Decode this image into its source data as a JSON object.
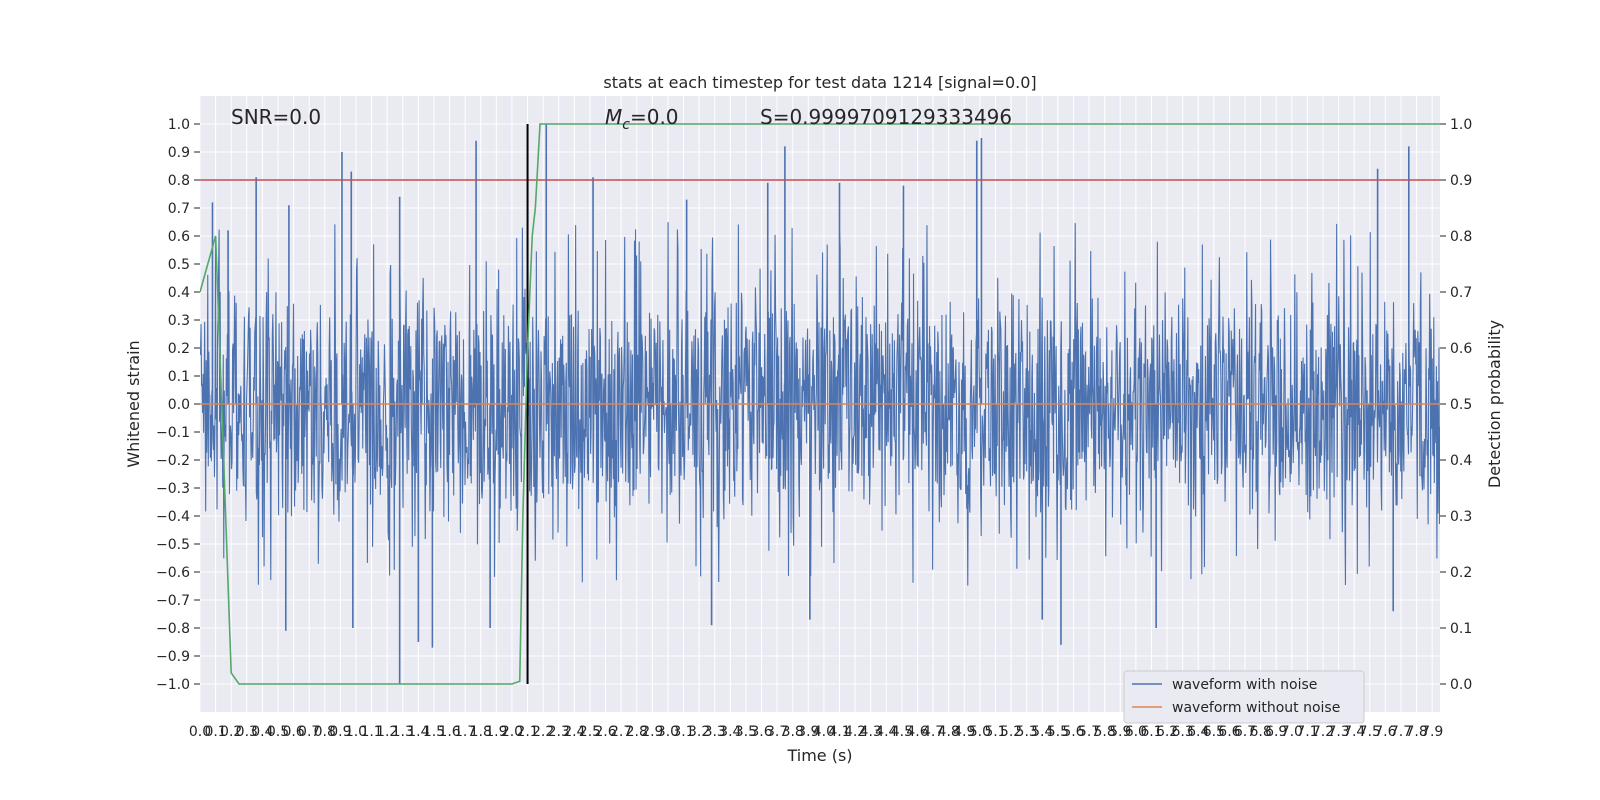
{
  "chart_data": {
    "type": "line",
    "title": "stats at each timestep for test data 1214 [signal=0.0]",
    "xlabel": "Time (s)",
    "ylabel": "Whitened strain",
    "ylabel_right": "Detection probability",
    "xlim": [
      0.0,
      7.95
    ],
    "ylim": [
      -1.1,
      1.1
    ],
    "ylim_right": [
      -0.05,
      1.05
    ],
    "x_ticks": [
      "0.0",
      "0.1",
      "0.2",
      "0.3",
      "0.4",
      "0.5",
      "0.6",
      "0.7",
      "0.8",
      "0.9",
      "1.0",
      "1.1",
      "1.2",
      "1.3",
      "1.4",
      "1.5",
      "1.6",
      "1.7",
      "1.8",
      "1.9",
      "2.0",
      "2.1",
      "2.2",
      "2.3",
      "2.4",
      "2.5",
      "2.6",
      "2.7",
      "2.8",
      "2.9",
      "3.0",
      "3.1",
      "3.2",
      "3.3",
      "3.4",
      "3.5",
      "3.6",
      "3.7",
      "3.8",
      "3.9",
      "4.0",
      "4.1",
      "4.2",
      "4.3",
      "4.4",
      "4.5",
      "4.6",
      "4.7",
      "4.8",
      "4.9",
      "5.0",
      "5.1",
      "5.2",
      "5.3",
      "5.4",
      "5.5",
      "5.6",
      "5.7",
      "5.8",
      "5.9",
      "6.0",
      "6.1",
      "6.2",
      "6.3",
      "6.4",
      "6.5",
      "6.6",
      "6.7",
      "6.8",
      "6.9",
      "7.0",
      "7.1",
      "7.2",
      "7.3",
      "7.4",
      "7.5",
      "7.6",
      "7.7",
      "7.8",
      "7.9"
    ],
    "y_ticks": [
      "1.0",
      "0.9",
      "0.8",
      "0.7",
      "0.6",
      "0.5",
      "0.4",
      "0.3",
      "0.2",
      "0.1",
      "0.0",
      "−0.1",
      "−0.2",
      "−0.3",
      "−0.4",
      "−0.5",
      "−0.6",
      "−0.7",
      "−0.8",
      "−0.9",
      "−1.0"
    ],
    "y_ticks_right": [
      "1.0",
      "0.9",
      "0.8",
      "0.7",
      "0.6",
      "0.5",
      "0.4",
      "0.3",
      "0.2",
      "0.1",
      "0.0"
    ],
    "annotations": {
      "snr": "SNR=0.0",
      "mc_symbol": "M",
      "mc_sub": "c",
      "mc_value": "=0.0",
      "s": "S=0.9999709129333496"
    },
    "legend": {
      "location": "lower-right",
      "entries": [
        {
          "label": "waveform with noise",
          "color": "#4c72b0"
        },
        {
          "label": "waveform without noise",
          "color": "#dd8452"
        }
      ]
    },
    "series": [
      {
        "name": "waveform with noise",
        "axis": "left",
        "color": "#4c72b0",
        "style": "dense-noise",
        "typical_range": [
          -0.45,
          0.45
        ],
        "spikes": [
          {
            "x": 0.08,
            "y": 0.72
          },
          {
            "x": 0.18,
            "y": 0.62
          },
          {
            "x": 0.36,
            "y": 0.81
          },
          {
            "x": 0.57,
            "y": 0.71
          },
          {
            "x": 0.91,
            "y": 0.9
          },
          {
            "x": 0.97,
            "y": 0.83
          },
          {
            "x": 1.28,
            "y": 0.74
          },
          {
            "x": 1.77,
            "y": 0.94
          },
          {
            "x": 2.22,
            "y": 1.0
          },
          {
            "x": 2.52,
            "y": 0.81
          },
          {
            "x": 3.12,
            "y": 0.73
          },
          {
            "x": 3.64,
            "y": 0.79
          },
          {
            "x": 3.75,
            "y": 0.92
          },
          {
            "x": 4.1,
            "y": 0.79
          },
          {
            "x": 4.51,
            "y": 0.78
          },
          {
            "x": 4.98,
            "y": 0.94
          },
          {
            "x": 5.01,
            "y": 0.95
          },
          {
            "x": 7.55,
            "y": 0.84
          },
          {
            "x": 7.75,
            "y": 0.92
          },
          {
            "x": 1.28,
            "y": -1.0
          },
          {
            "x": 1.4,
            "y": -0.85
          },
          {
            "x": 1.49,
            "y": -0.87
          },
          {
            "x": 0.55,
            "y": -0.81
          },
          {
            "x": 0.98,
            "y": -0.8
          },
          {
            "x": 1.86,
            "y": -0.8
          },
          {
            "x": 3.28,
            "y": -0.79
          },
          {
            "x": 3.91,
            "y": -0.77
          },
          {
            "x": 5.52,
            "y": -0.86
          },
          {
            "x": 5.4,
            "y": -0.77
          },
          {
            "x": 6.13,
            "y": -0.8
          },
          {
            "x": 7.65,
            "y": -0.74
          }
        ]
      },
      {
        "name": "waveform without noise",
        "axis": "left",
        "color": "#dd8452",
        "x": [
          0.0,
          7.95
        ],
        "y": [
          0.0,
          0.0
        ]
      },
      {
        "name": "detection probability",
        "axis": "right",
        "color": "#55a868",
        "x": [
          0.0,
          0.05,
          0.07,
          0.1,
          0.12,
          0.2,
          0.25,
          1.0,
          2.0,
          2.05,
          2.07,
          2.1,
          2.13,
          2.15,
          2.18,
          7.95
        ],
        "y": [
          0.7,
          0.75,
          0.77,
          0.8,
          0.65,
          0.02,
          0.0,
          0.0,
          0.0,
          0.005,
          0.3,
          0.6,
          0.8,
          0.85,
          1.0,
          1.0
        ]
      }
    ],
    "reference_lines": {
      "threshold_right": {
        "value": 0.9,
        "color": "#c44e52"
      },
      "vertical_time": {
        "value": 2.1,
        "color": "#000000",
        "y_range": [
          -1.0,
          1.0
        ]
      }
    }
  }
}
